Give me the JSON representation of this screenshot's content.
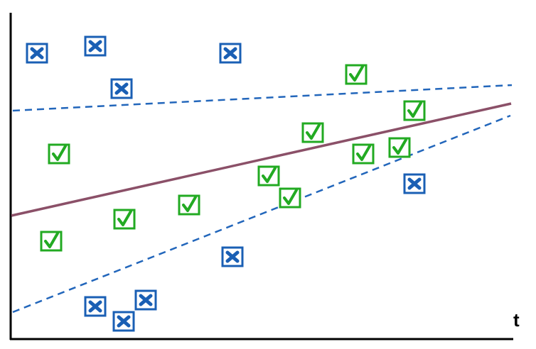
{
  "axis": {
    "x_label": "t"
  },
  "colors": {
    "axis": "#000000",
    "decision_line": "#8b5068",
    "margin_line": "#2266bb",
    "check_marker": "#22aa22",
    "cross_marker": "#1a5fb4"
  },
  "markers": {
    "check_icon": "check-box-icon",
    "cross_icon": "cross-box-icon",
    "check_count": 12,
    "cross_count": 10
  }
}
